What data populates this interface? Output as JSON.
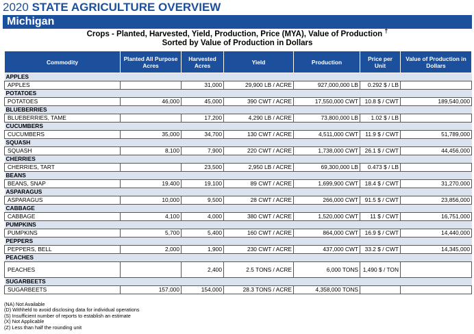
{
  "header": {
    "year": "2020",
    "title": "STATE AGRICULTURE OVERVIEW",
    "state": "Michigan"
  },
  "report": {
    "title_line1": "Crops - Planted, Harvested, Yield, Production, Price (MYA), Value of Production",
    "dagger": "†",
    "title_line2": "Sorted by Value of Production in Dollars"
  },
  "table": {
    "columns": [
      "Commodity",
      "Planted All Purpose Acres",
      "Harvested Acres",
      "Yield",
      "Production",
      "Price per Unit",
      "Value of Production in Dollars"
    ],
    "groups": [
      {
        "name": "APPLES",
        "row": {
          "commodity": "APPLES",
          "planted": "",
          "harvested": "31,000",
          "yield": "29,900 LB / ACRE",
          "production": "927,000,000 LB",
          "price": "0.292 $ / LB",
          "value": ""
        }
      },
      {
        "name": "POTATOES",
        "row": {
          "commodity": "POTATOES",
          "planted": "46,000",
          "harvested": "45,000",
          "yield": "390 CWT / ACRE",
          "production": "17,550,000 CWT",
          "price": "10.8 $ / CWT",
          "value": "189,540,000"
        }
      },
      {
        "name": "BLUEBERRIES",
        "row": {
          "commodity": "BLUEBERRIES, TAME",
          "planted": "",
          "harvested": "17,200",
          "yield": "4,290 LB / ACRE",
          "production": "73,800,000 LB",
          "price": "1.02 $ / LB",
          "value": ""
        }
      },
      {
        "name": "CUCUMBERS",
        "row": {
          "commodity": "CUCUMBERS",
          "planted": "35,000",
          "harvested": "34,700",
          "yield": "130 CWT / ACRE",
          "production": "4,511,000 CWT",
          "price": "11.9 $ / CWT",
          "value": "51,789,000"
        }
      },
      {
        "name": "SQUASH",
        "row": {
          "commodity": "SQUASH",
          "planted": "8,100",
          "harvested": "7,900",
          "yield": "220 CWT / ACRE",
          "production": "1,738,000 CWT",
          "price": "26.1 $ / CWT",
          "value": "44,456,000"
        }
      },
      {
        "name": "CHERRIES",
        "row": {
          "commodity": "CHERRIES, TART",
          "planted": "",
          "harvested": "23,500",
          "yield": "2,950 LB / ACRE",
          "production": "69,300,000 LB",
          "price": "0.473 $ / LB",
          "value": ""
        }
      },
      {
        "name": "BEANS",
        "row": {
          "commodity": "BEANS, SNAP",
          "planted": "19,400",
          "harvested": "19,100",
          "yield": "89 CWT / ACRE",
          "production": "1,699,900 CWT",
          "price": "18.4 $ / CWT",
          "value": "31,270,000"
        }
      },
      {
        "name": "ASPARAGUS",
        "row": {
          "commodity": "ASPARAGUS",
          "planted": "10,000",
          "harvested": "9,500",
          "yield": "28 CWT / ACRE",
          "production": "266,000 CWT",
          "price": "91.5 $ / CWT",
          "value": "23,856,000"
        }
      },
      {
        "name": "CABBAGE",
        "row": {
          "commodity": "CABBAGE",
          "planted": "4,100",
          "harvested": "4,000",
          "yield": "380 CWT / ACRE",
          "production": "1,520,000 CWT",
          "price": "11 $ / CWT",
          "value": "16,751,000"
        }
      },
      {
        "name": "PUMPKINS",
        "row": {
          "commodity": "PUMPKINS",
          "planted": "5,700",
          "harvested": "5,400",
          "yield": "160 CWT / ACRE",
          "production": "864,000 CWT",
          "price": "16.9 $ / CWT",
          "value": "14,440,000"
        }
      },
      {
        "name": "PEPPERS",
        "row": {
          "commodity": "PEPPERS, BELL",
          "planted": "2,000",
          "harvested": "1,900",
          "yield": "230 CWT / ACRE",
          "production": "437,000 CWT",
          "price": "33.2 $ / CWT",
          "value": "14,345,000"
        }
      },
      {
        "name": "PEACHES",
        "row": {
          "commodity": "PEACHES",
          "planted": "",
          "harvested": "2,400",
          "yield": "2.5 TONS / ACRE",
          "production": "6,000 TONS",
          "price": "1,490 $ / TON",
          "value": ""
        },
        "tall": true
      },
      {
        "name": "SUGARBEETS",
        "row": {
          "commodity": "SUGARBEETS",
          "planted": "157,000",
          "harvested": "154,000",
          "yield": "28.3 TONS / ACRE",
          "production": "4,358,000 TONS",
          "price": "",
          "value": ""
        }
      }
    ]
  },
  "footnotes": [
    "(NA) Not Available",
    "(D) Withheld to avoid disclosing data for individual operations",
    "(S) Insufficient number of reports to establish an estimate",
    "(X) Not Applicable",
    "(Z) Less than half the rounding unit"
  ]
}
